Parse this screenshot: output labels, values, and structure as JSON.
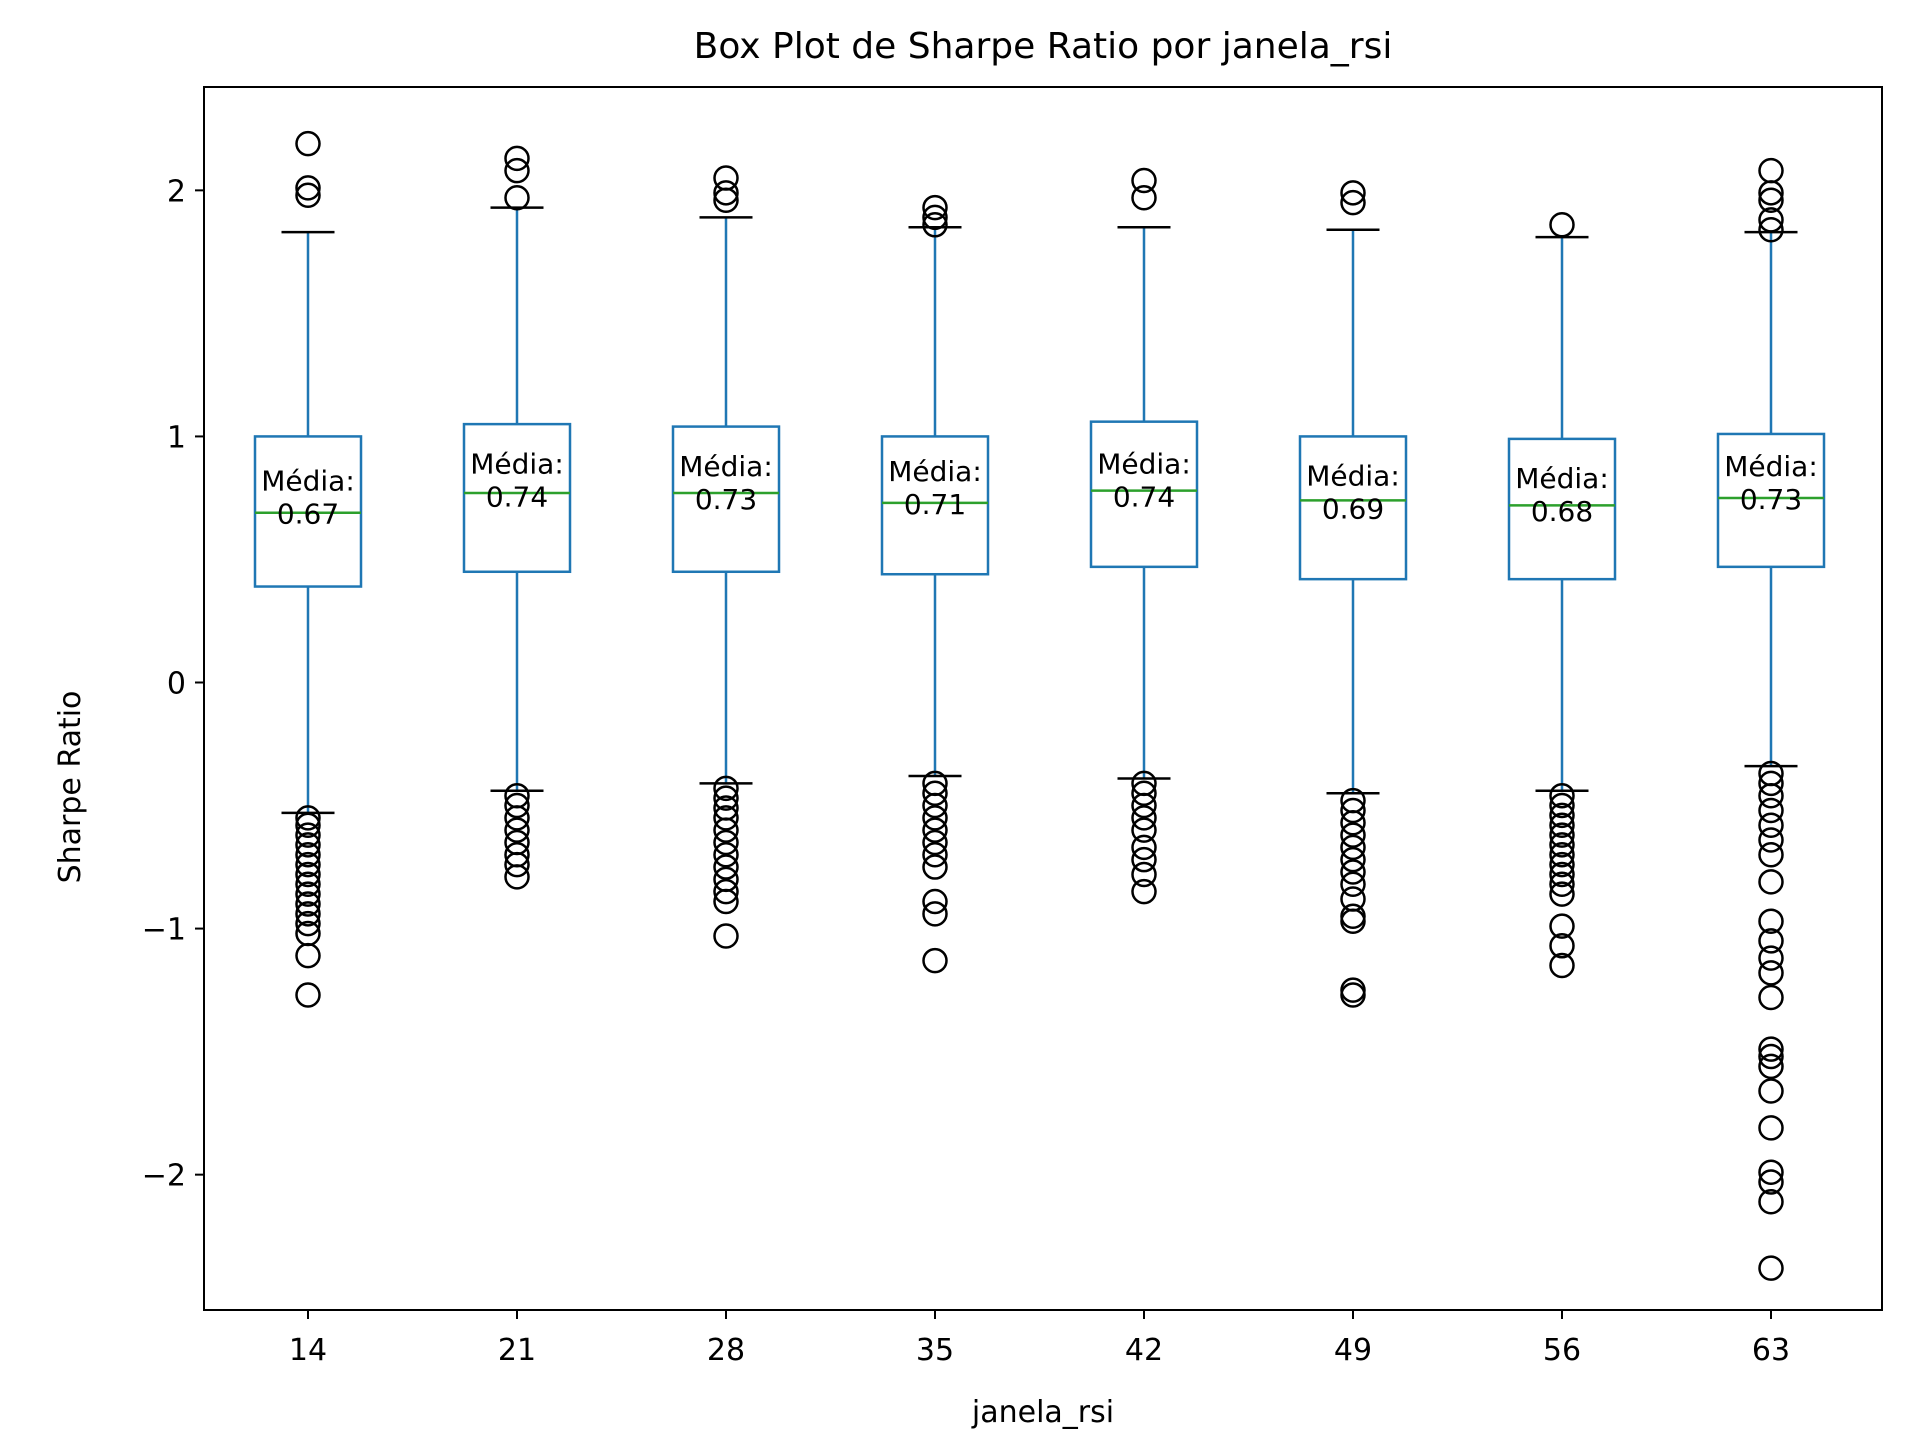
{
  "chart_data": {
    "type": "box",
    "title": "Box Plot de Sharpe Ratio por janela_rsi",
    "xlabel": "janela_rsi",
    "ylabel": "Sharpe Ratio",
    "ylim": [
      -2.55,
      2.42
    ],
    "yticks": [
      2,
      1,
      0,
      -1,
      -2
    ],
    "ytick_labels": [
      "2",
      "1",
      "0",
      "−1",
      "−2"
    ],
    "grid": false,
    "mean_label_prefix": "Média:",
    "colors": {
      "box": "#1f77b4",
      "median": "#2ca02c",
      "whisker": "#1f77b4",
      "cap": "#000000",
      "flier": "#000000"
    },
    "categories": [
      "14",
      "21",
      "28",
      "35",
      "42",
      "49",
      "56",
      "63"
    ],
    "boxes": [
      {
        "category": "14",
        "whislo": -0.53,
        "q1": 0.39,
        "median": 0.69,
        "q3": 1.0,
        "whishi": 1.83,
        "mean": 0.67,
        "mean_label": "0.67",
        "fliers": [
          2.19,
          2.01,
          1.98,
          -0.55,
          -0.58,
          -0.62,
          -0.66,
          -0.7,
          -0.74,
          -0.78,
          -0.82,
          -0.86,
          -0.9,
          -0.94,
          -0.98,
          -1.02,
          -1.11,
          -1.27
        ]
      },
      {
        "category": "21",
        "whislo": -0.44,
        "q1": 0.45,
        "median": 0.77,
        "q3": 1.05,
        "whishi": 1.93,
        "mean": 0.74,
        "mean_label": "0.74",
        "fliers": [
          2.13,
          2.08,
          1.97,
          -0.46,
          -0.5,
          -0.55,
          -0.6,
          -0.65,
          -0.7,
          -0.74,
          -0.79
        ]
      },
      {
        "category": "28",
        "whislo": -0.41,
        "q1": 0.45,
        "median": 0.77,
        "q3": 1.04,
        "whishi": 1.89,
        "mean": 0.73,
        "mean_label": "0.73",
        "fliers": [
          2.05,
          1.99,
          1.96,
          -0.43,
          -0.47,
          -0.51,
          -0.55,
          -0.6,
          -0.65,
          -0.7,
          -0.75,
          -0.8,
          -0.85,
          -0.89,
          -1.03
        ]
      },
      {
        "category": "35",
        "whislo": -0.38,
        "q1": 0.44,
        "median": 0.73,
        "q3": 1.0,
        "whishi": 1.85,
        "mean": 0.71,
        "mean_label": "0.71",
        "fliers": [
          1.93,
          1.89,
          1.86,
          -0.41,
          -0.45,
          -0.5,
          -0.55,
          -0.6,
          -0.65,
          -0.7,
          -0.75,
          -0.89,
          -0.94,
          -1.13
        ]
      },
      {
        "category": "42",
        "whislo": -0.39,
        "q1": 0.47,
        "median": 0.78,
        "q3": 1.06,
        "whishi": 1.85,
        "mean": 0.74,
        "mean_label": "0.74",
        "fliers": [
          2.04,
          1.97,
          -0.41,
          -0.45,
          -0.5,
          -0.55,
          -0.6,
          -0.67,
          -0.72,
          -0.78,
          -0.85
        ]
      },
      {
        "category": "49",
        "whislo": -0.45,
        "q1": 0.42,
        "median": 0.74,
        "q3": 1.0,
        "whishi": 1.84,
        "mean": 0.69,
        "mean_label": "0.69",
        "fliers": [
          1.99,
          1.95,
          -0.48,
          -0.52,
          -0.57,
          -0.62,
          -0.67,
          -0.72,
          -0.77,
          -0.82,
          -0.88,
          -0.95,
          -0.97,
          -1.25,
          -1.27
        ]
      },
      {
        "category": "56",
        "whislo": -0.44,
        "q1": 0.42,
        "median": 0.72,
        "q3": 0.99,
        "whishi": 1.81,
        "mean": 0.68,
        "mean_label": "0.68",
        "fliers": [
          1.86,
          -0.46,
          -0.5,
          -0.54,
          -0.58,
          -0.62,
          -0.66,
          -0.7,
          -0.74,
          -0.78,
          -0.82,
          -0.86,
          -0.99,
          -1.07,
          -1.15
        ]
      },
      {
        "category": "63",
        "whislo": -0.34,
        "q1": 0.47,
        "median": 0.75,
        "q3": 1.01,
        "whishi": 1.83,
        "mean": 0.73,
        "mean_label": "0.73",
        "fliers": [
          2.08,
          1.99,
          1.96,
          1.88,
          1.84,
          -0.37,
          -0.41,
          -0.46,
          -0.52,
          -0.58,
          -0.64,
          -0.7,
          -0.81,
          -0.97,
          -1.05,
          -1.12,
          -1.18,
          -1.28,
          -1.49,
          -1.52,
          -1.56,
          -1.66,
          -1.81,
          -1.99,
          -2.03,
          -2.11,
          -2.38
        ]
      }
    ]
  }
}
